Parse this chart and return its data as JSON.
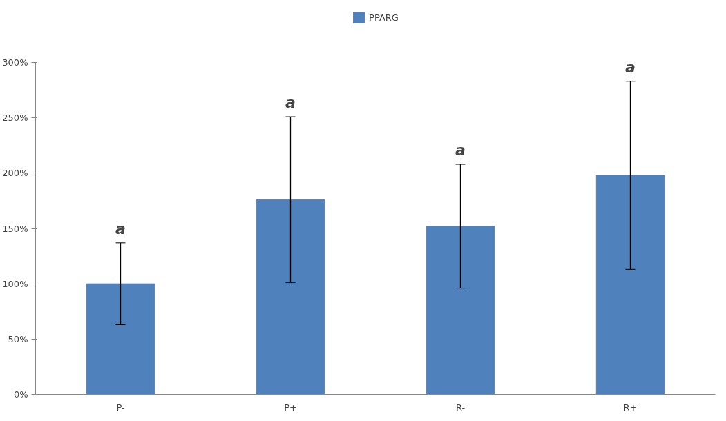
{
  "chart_data": {
    "type": "bar",
    "categories": [
      "P-",
      "P+",
      "R-",
      "R+"
    ],
    "series": [
      {
        "name": "PPARG",
        "color": "#4f81bd",
        "values": [
          100,
          176,
          152,
          198
        ],
        "errors": [
          37,
          75,
          56,
          85
        ]
      }
    ],
    "ylim": [
      0,
      300
    ],
    "yticks": [
      {
        "value": 0,
        "label": "0%"
      },
      {
        "value": 50,
        "label": "50%"
      },
      {
        "value": 100,
        "label": "100%"
      },
      {
        "value": 150,
        "label": "150%"
      },
      {
        "value": 200,
        "label": "200%"
      },
      {
        "value": 250,
        "label": "250%"
      },
      {
        "value": 300,
        "label": "300%"
      }
    ],
    "annotations": [
      {
        "text": "a",
        "x": "P-",
        "y": 137
      },
      {
        "text": "a",
        "x": "P+",
        "y": 251
      },
      {
        "text": "a",
        "x": "R-",
        "y": 208
      },
      {
        "text": "a",
        "x": "R+",
        "y": 283
      }
    ],
    "legend": "top",
    "grid": false
  }
}
